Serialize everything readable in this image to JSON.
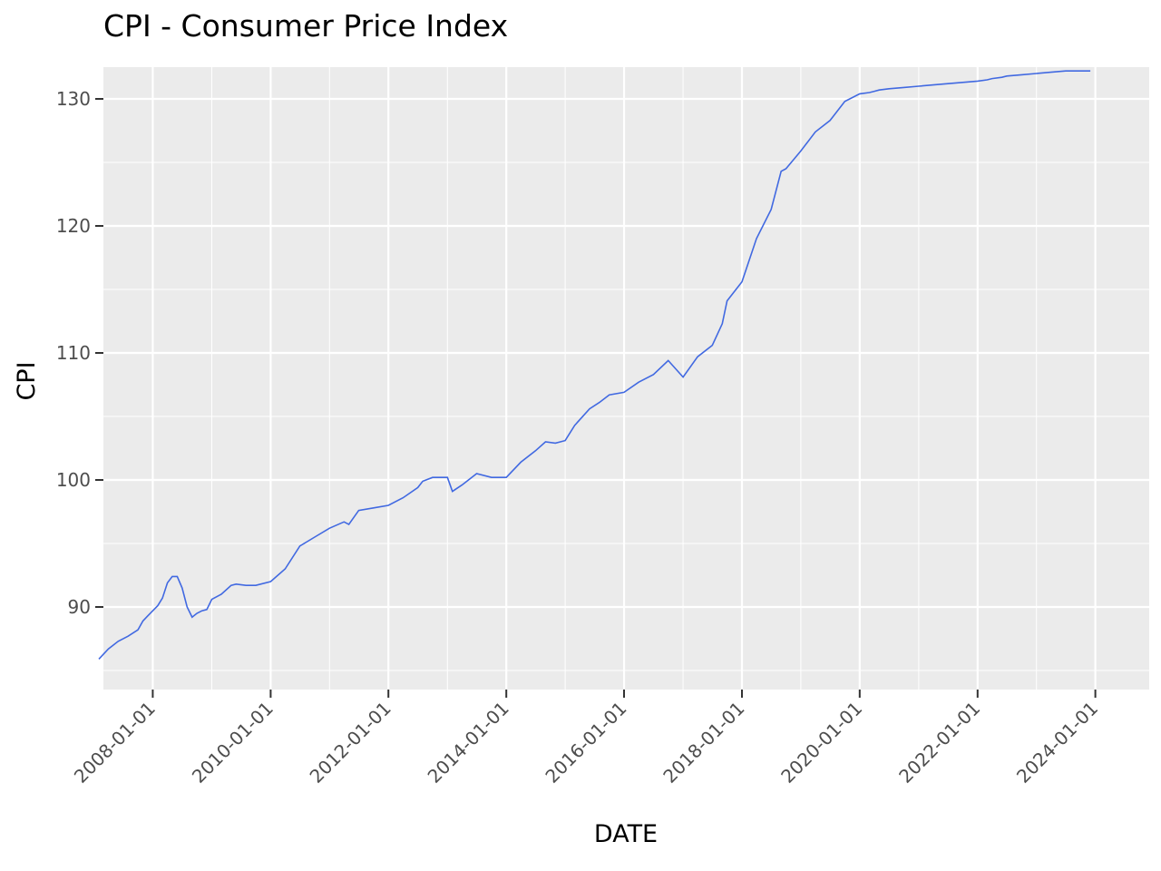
{
  "chart_data": {
    "type": "line",
    "title": "CPI - Consumer Price Index",
    "xlabel": "DATE",
    "ylabel": "CPI",
    "xlim": [
      "2007-03-01",
      "2024-11-30"
    ],
    "ylim": [
      83.5,
      132.5
    ],
    "x_ticks": [
      "2008-01-01",
      "2010-01-01",
      "2012-01-01",
      "2014-01-01",
      "2016-01-01",
      "2018-01-01",
      "2020-01-01",
      "2022-01-01",
      "2024-01-01"
    ],
    "x_minor_ticks": [
      "2009-01-01",
      "2011-01-01",
      "2013-01-01",
      "2015-01-01",
      "2017-01-01",
      "2019-01-01",
      "2021-01-01",
      "2023-01-01"
    ],
    "y_ticks": [
      90,
      100,
      110,
      120,
      130
    ],
    "y_minor_ticks": [
      85,
      95,
      105,
      115,
      125
    ],
    "grid": true,
    "colors": {
      "panel": "#ebebeb",
      "grid": "#ffffff",
      "line": "#4169e1",
      "tick": "#333333"
    },
    "series": [
      {
        "x": [
          "2007-02-01",
          "2007-04-01",
          "2007-06-01",
          "2007-08-01",
          "2007-10-01",
          "2007-11-01",
          "2007-12-01",
          "2008-01-01",
          "2008-02-01",
          "2008-03-01",
          "2008-04-01",
          "2008-05-01",
          "2008-06-01",
          "2008-07-01",
          "2008-08-01",
          "2008-09-01",
          "2008-10-01",
          "2008-11-01",
          "2008-12-01",
          "2009-01-01",
          "2009-03-01",
          "2009-05-01",
          "2009-06-01",
          "2009-08-01",
          "2009-10-01",
          "2010-01-01",
          "2010-04-01",
          "2010-07-01",
          "2010-10-01",
          "2011-01-01",
          "2011-04-01",
          "2011-05-01",
          "2011-07-01",
          "2011-10-01",
          "2012-01-01",
          "2012-04-01",
          "2012-07-01",
          "2012-08-01",
          "2012-10-01",
          "2013-01-01",
          "2013-02-01",
          "2013-04-01",
          "2013-07-01",
          "2013-10-01",
          "2014-01-01",
          "2014-04-01",
          "2014-07-01",
          "2014-09-01",
          "2014-11-01",
          "2015-01-01",
          "2015-03-01",
          "2015-06-01",
          "2015-08-01",
          "2015-10-01",
          "2016-01-01",
          "2016-04-01",
          "2016-07-01",
          "2016-10-01",
          "2017-01-01",
          "2017-04-01",
          "2017-07-01",
          "2017-09-01",
          "2017-10-01",
          "2018-01-01",
          "2018-04-01",
          "2018-07-01",
          "2018-09-01",
          "2018-10-01",
          "2019-01-01",
          "2019-04-01",
          "2019-07-01",
          "2019-10-01",
          "2020-01-01",
          "2020-03-01",
          "2020-04-01",
          "2020-05-01",
          "2020-07-01",
          "2020-10-01",
          "2021-01-01",
          "2021-04-01",
          "2021-07-01",
          "2021-10-01",
          "2022-01-01",
          "2022-03-01",
          "2022-04-01",
          "2022-06-01",
          "2022-07-01",
          "2022-10-01",
          "2023-01-01",
          "2023-04-01",
          "2023-07-01",
          "2023-08-01",
          "2023-10-01",
          "2023-12-01"
        ],
        "values": [
          85.9,
          86.7,
          87.3,
          87.7,
          88.2,
          88.9,
          89.3,
          89.7,
          90.1,
          90.7,
          91.9,
          92.4,
          92.4,
          91.5,
          90.0,
          89.2,
          89.5,
          89.7,
          89.8,
          90.6,
          91.0,
          91.7,
          91.8,
          91.7,
          91.7,
          92.0,
          93.0,
          94.8,
          95.5,
          96.2,
          96.7,
          96.5,
          97.6,
          97.8,
          98.0,
          98.6,
          99.4,
          99.9,
          100.2,
          100.2,
          99.1,
          99.6,
          100.5,
          100.2,
          100.2,
          101.4,
          102.3,
          103.0,
          102.9,
          103.1,
          104.3,
          105.6,
          106.1,
          106.7,
          106.9,
          107.7,
          108.3,
          109.4,
          108.1,
          109.7,
          110.6,
          112.3,
          114.1,
          115.6,
          119.0,
          121.3,
          124.3,
          124.5,
          125.9,
          127.4,
          128.3,
          129.8,
          130.4,
          130.5,
          130.6,
          130.7,
          130.8,
          130.9,
          131.0,
          131.1,
          131.2,
          131.3,
          131.4,
          131.5,
          131.6,
          131.7,
          131.8,
          131.9,
          132.0,
          132.1,
          132.2,
          132.2,
          132.2,
          132.2
        ]
      }
    ]
  }
}
